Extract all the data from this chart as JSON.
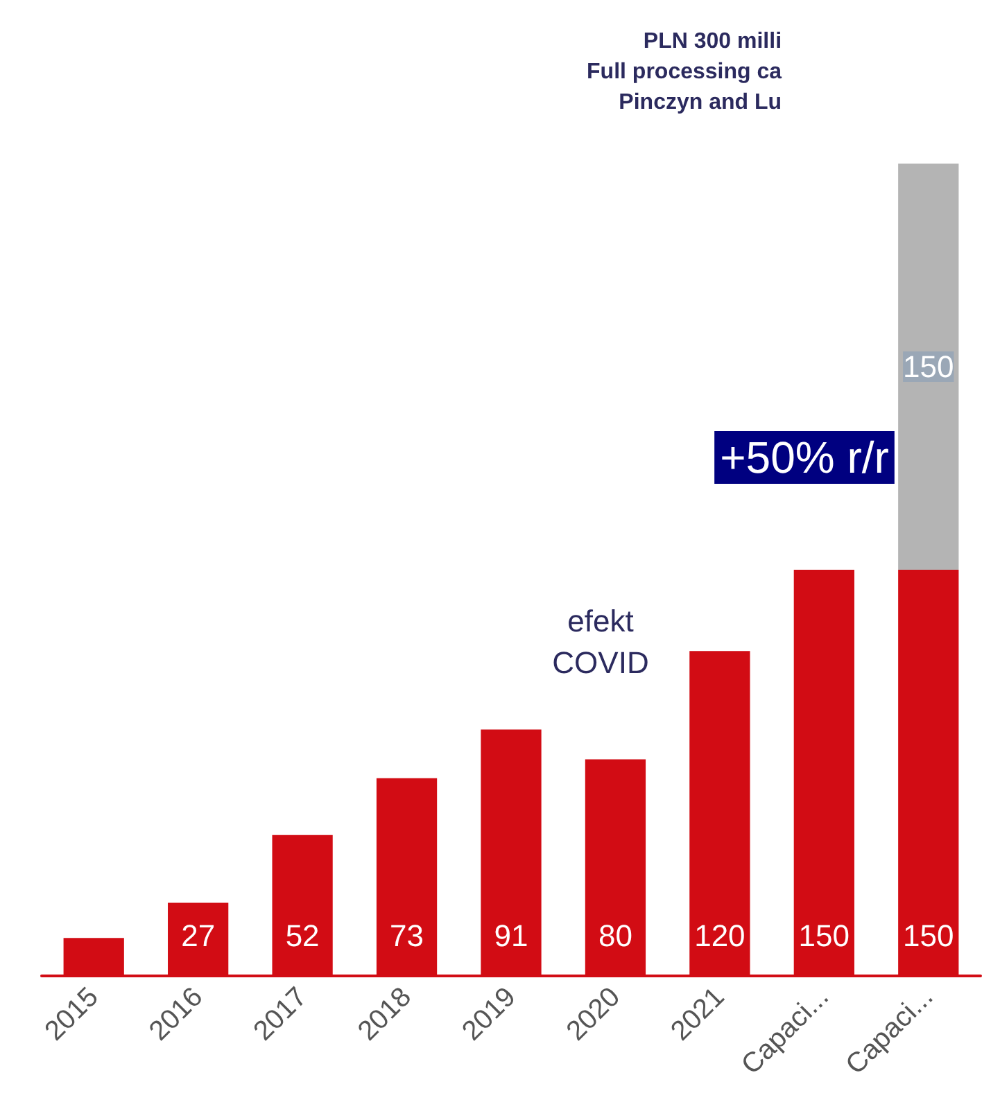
{
  "chart_data": {
    "type": "bar",
    "title": "PLN 300 milli\nFull processing ca\nPinczyn and Lu",
    "stacked": true,
    "categories": [
      "2015",
      "2016",
      "2017",
      "2018",
      "2019",
      "2020",
      "2021",
      "Capaci...",
      "Capaci..."
    ],
    "series": [
      {
        "color": "#d20c14",
        "values": [
          14,
          27,
          52,
          73,
          91,
          80,
          120,
          150,
          150
        ],
        "value_labels": [
          null,
          "27",
          "52",
          "73",
          "91",
          "80",
          "120",
          "150",
          "150"
        ]
      },
      {
        "color": "#b4b4b4",
        "values": [
          null,
          null,
          null,
          null,
          null,
          null,
          null,
          null,
          150
        ],
        "value_labels": [
          null,
          null,
          null,
          null,
          null,
          null,
          null,
          null,
          "150"
        ]
      }
    ],
    "annotations": [
      "efekt\nCOVID",
      "+50% r/r"
    ]
  }
}
